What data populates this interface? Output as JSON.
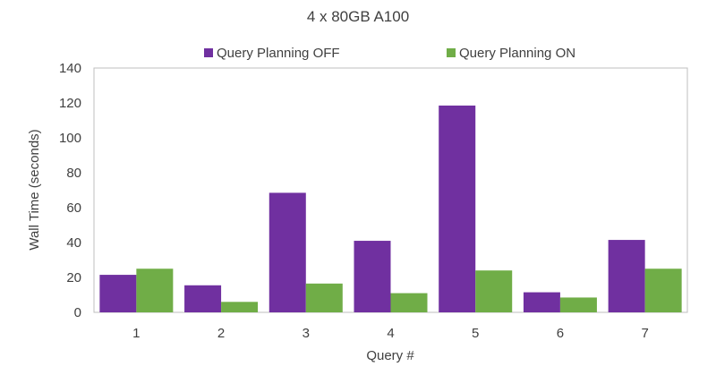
{
  "chart_data": {
    "type": "bar",
    "title": "4 x 80GB A100",
    "xlabel": "Query #",
    "ylabel": "Wall Time (seconds)",
    "ylim": [
      0,
      140
    ],
    "yticks": [
      0,
      20,
      40,
      60,
      80,
      100,
      120,
      140
    ],
    "categories": [
      "1",
      "2",
      "3",
      "4",
      "5",
      "6",
      "7"
    ],
    "series": [
      {
        "name": "Query Planning OFF",
        "color": "#7030a0",
        "values": [
          21.5,
          15.5,
          68.5,
          41,
          118.5,
          11.5,
          41.5
        ]
      },
      {
        "name": "Query Planning ON",
        "color": "#70ad47",
        "values": [
          25,
          6,
          16.5,
          11,
          24,
          8.5,
          25
        ]
      }
    ],
    "grid": false,
    "legend": "top-center"
  }
}
